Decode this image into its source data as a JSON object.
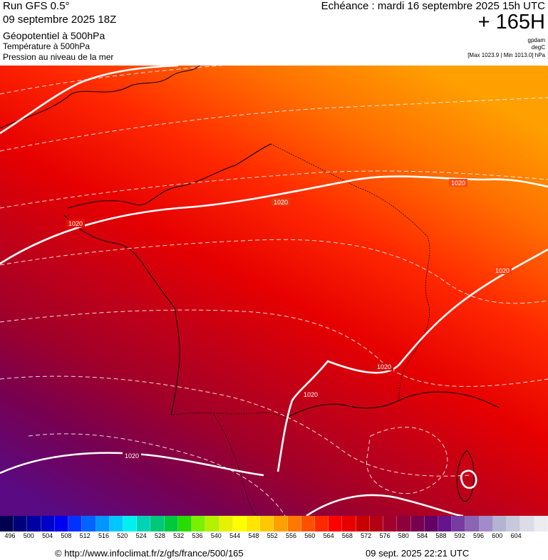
{
  "header": {
    "run": "Run GFS 0.5°",
    "run_date": "09 septembre 2025 18Z",
    "param1": "Géopotentiel à 500hPa",
    "param2": "Température à 500hPa",
    "param3": "Pression au niveau de la mer",
    "echeance": "Echéance : mardi 16 septembre 2025 15h UTC",
    "lead": "+ 165H",
    "unit1": "gpdam",
    "unit2": "degC",
    "minmax": "[Max 1023.9 | Min 1013.0] hPa"
  },
  "isobar_labels": [
    "1020",
    "1020",
    "1020",
    "1020",
    "1020",
    "1020",
    "1020"
  ],
  "legend": {
    "ticks": [
      "496",
      "500",
      "504",
      "508",
      "512",
      "516",
      "520",
      "524",
      "528",
      "532",
      "536",
      "540",
      "544",
      "548",
      "552",
      "556",
      "560",
      "564",
      "568",
      "572",
      "576",
      "580",
      "584",
      "588",
      "592",
      "596",
      "600",
      "604"
    ],
    "colors": [
      "#000050",
      "#000078",
      "#0000a0",
      "#0000c8",
      "#0000f0",
      "#0032ff",
      "#0064ff",
      "#0096ff",
      "#00c8ff",
      "#00f0f0",
      "#00d2b4",
      "#00c878",
      "#00c83c",
      "#28dc00",
      "#78f000",
      "#b4f000",
      "#e6f000",
      "#ffff00",
      "#ffe600",
      "#ffc800",
      "#ffa000",
      "#ff7800",
      "#ff5000",
      "#ff2800",
      "#ff0000",
      "#e60000",
      "#c80000",
      "#b40014",
      "#a0002a",
      "#8c003c",
      "#780050",
      "#640064",
      "#64148c",
      "#783ca0",
      "#8c64b4",
      "#a08cc8",
      "#b4b4d2",
      "#c8c8dc",
      "#dcdce6",
      "#ececf0"
    ]
  },
  "footer": {
    "credit": "© http://www.infoclimat.fr/z/gfs/france/500/165",
    "timestamp": "09 sept. 2025 22:21 UTC"
  }
}
